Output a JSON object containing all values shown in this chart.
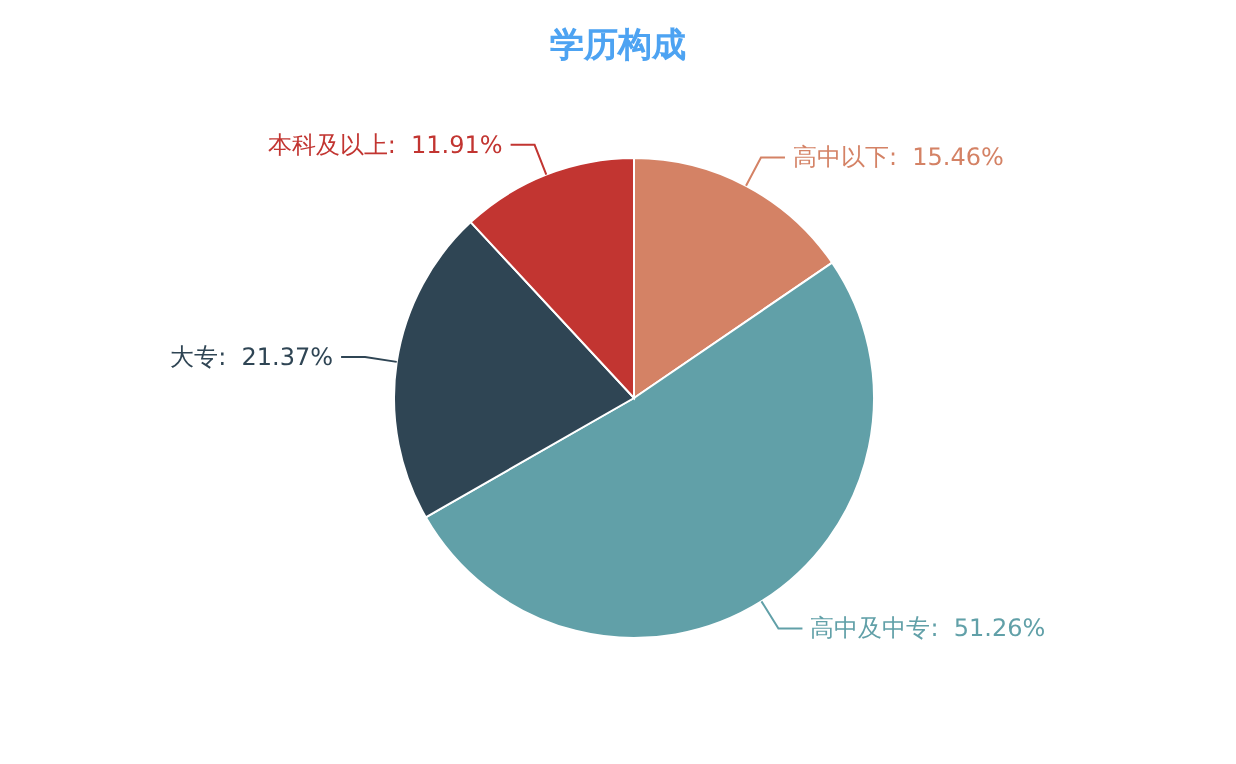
{
  "chart_data": {
    "type": "pie",
    "title": "学历构成",
    "categories": [
      "高中以下",
      "高中及中专",
      "大专",
      "本科及以上"
    ],
    "value_labels": [
      ":  15.46%",
      ":  51.26%",
      ":  21.37%",
      ":  11.91%"
    ],
    "values": [
      15.46,
      51.26,
      21.37,
      11.91
    ],
    "colors": [
      "#d48265",
      "#61a0a8",
      "#2f4554",
      "#c23531"
    ],
    "legend": false
  }
}
